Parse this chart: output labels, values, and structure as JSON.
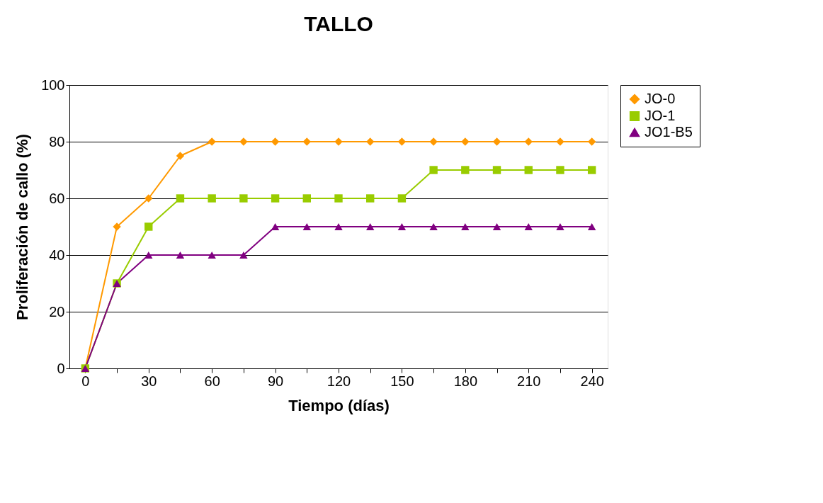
{
  "chart_data": {
    "type": "line",
    "title": "TALLO",
    "xlabel": "Tiempo (días)",
    "ylabel": "Proliferación de callo (%)",
    "categories": [
      "0",
      null,
      "30",
      null,
      "60",
      null,
      "90",
      null,
      "120",
      null,
      "150",
      null,
      "180",
      null,
      "210",
      null,
      "240"
    ],
    "series": [
      {
        "name": "JO-0",
        "color": "#ff9900",
        "marker": "diamond",
        "values": [
          0,
          50,
          60,
          75,
          80,
          80,
          80,
          80,
          80,
          80,
          80,
          80,
          80,
          80,
          80,
          80,
          80
        ]
      },
      {
        "name": "JO-1",
        "color": "#99cc00",
        "marker": "square",
        "values": [
          0,
          30,
          50,
          60,
          60,
          60,
          60,
          60,
          60,
          60,
          60,
          70,
          70,
          70,
          70,
          70,
          70
        ]
      },
      {
        "name": "JO1-B5",
        "color": "#800080",
        "marker": "triangle",
        "values": [
          0,
          30,
          40,
          40,
          40,
          40,
          50,
          50,
          50,
          50,
          50,
          50,
          50,
          50,
          50,
          50,
          50
        ]
      }
    ],
    "ylim": [
      0,
      100
    ],
    "yticks": [
      0,
      20,
      40,
      60,
      80,
      100
    ],
    "grid": "y",
    "legend": "right",
    "line_style": "solid"
  }
}
